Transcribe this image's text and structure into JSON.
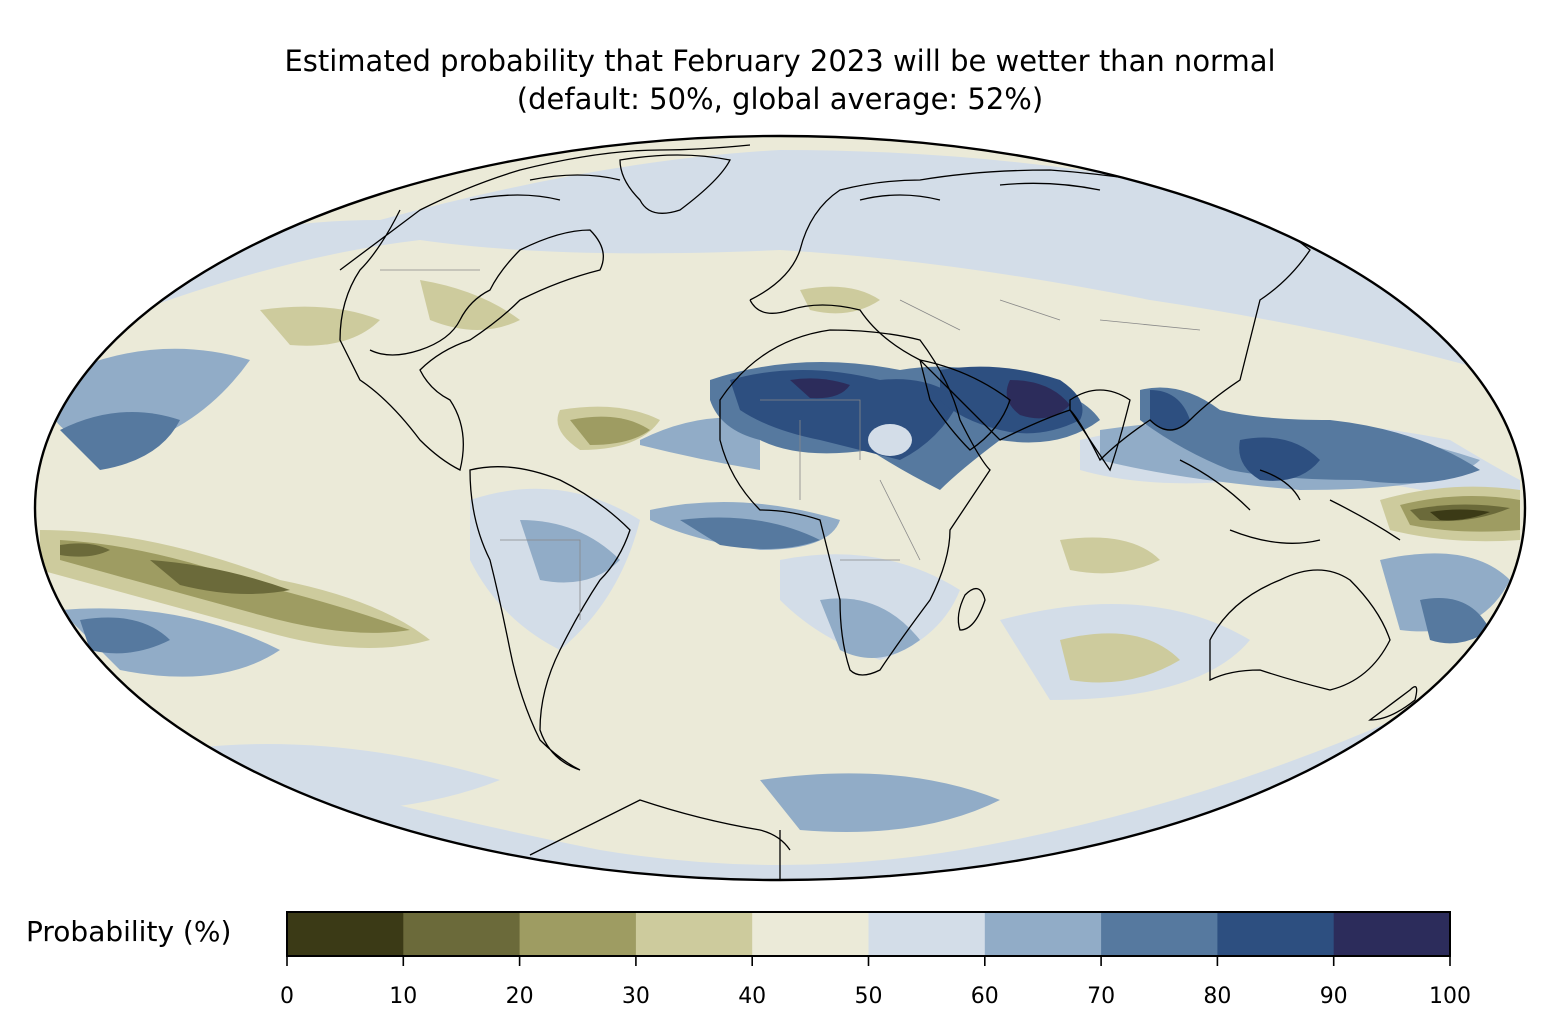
{
  "title": {
    "line1": "Estimated probability that February 2023 will be wetter than normal",
    "line2": "(default: 50%, global average: 52%)"
  },
  "map": {
    "projection": "Mollweide",
    "variable": "Probability that February 2023 will be wetter than normal",
    "unit": "%",
    "default_percent": 50,
    "global_average_percent": 52,
    "features": [
      "coastlines",
      "country borders"
    ],
    "notable_regions": [
      {
        "region": "Sahara / North Africa",
        "probability_class": "80-90"
      },
      {
        "region": "Arabian Sea / southern Arabia",
        "probability_class": "90-100"
      },
      {
        "region": "Maritime Continent / Philippines",
        "probability_class": "70-80"
      },
      {
        "region": "Central Pacific (equatorial, west)",
        "probability_class": "0-10"
      },
      {
        "region": "Eastern South Pacific band",
        "probability_class": "10-20"
      },
      {
        "region": "Tropical North Atlantic",
        "probability_class": "20-30"
      }
    ]
  },
  "colorbar": {
    "label": "Probability (%)",
    "orientation": "horizontal",
    "placement": "bottom",
    "ticks": [
      "0",
      "10",
      "20",
      "30",
      "40",
      "50",
      "60",
      "70",
      "80",
      "90",
      "100"
    ],
    "bins": [
      {
        "range": [
          0,
          10
        ],
        "color": "#3b3a16"
      },
      {
        "range": [
          10,
          20
        ],
        "color": "#6b6a3a"
      },
      {
        "range": [
          20,
          30
        ],
        "color": "#9e9c62"
      },
      {
        "range": [
          30,
          40
        ],
        "color": "#cdcb9d"
      },
      {
        "range": [
          40,
          50
        ],
        "color": "#ebead8"
      },
      {
        "range": [
          50,
          60
        ],
        "color": "#d3dde8"
      },
      {
        "range": [
          60,
          70
        ],
        "color": "#91acc7"
      },
      {
        "range": [
          70,
          80
        ],
        "color": "#56799f"
      },
      {
        "range": [
          80,
          90
        ],
        "color": "#2d4f80"
      },
      {
        "range": [
          90,
          100
        ],
        "color": "#2c2c5b"
      }
    ]
  }
}
